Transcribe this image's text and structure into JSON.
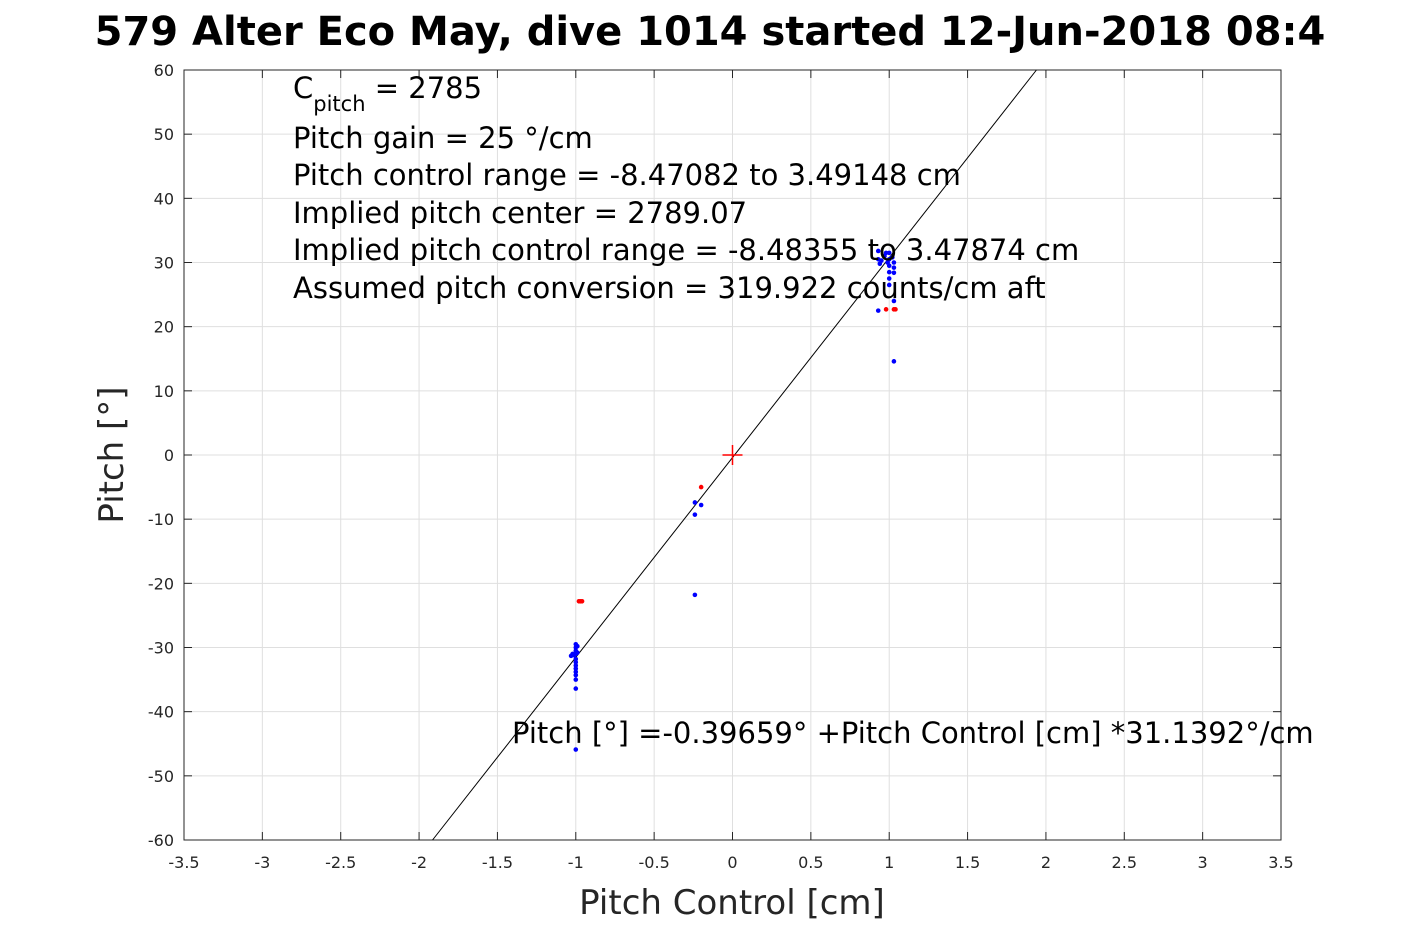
{
  "chart_data": {
    "type": "scatter",
    "title": "579 Alter Eco May, dive 1014 started 12-Jun-2018 08:4",
    "xlabel": "Pitch Control [cm]",
    "ylabel": "Pitch [°]",
    "xlim": [
      -3.5,
      3.5
    ],
    "ylim": [
      -60,
      60
    ],
    "xticks": [
      -3.5,
      -3,
      -2.5,
      -2,
      -1.5,
      -1,
      -0.5,
      0,
      0.5,
      1,
      1.5,
      2,
      2.5,
      3,
      3.5
    ],
    "yticks": [
      -60,
      -50,
      -40,
      -30,
      -20,
      -10,
      0,
      10,
      20,
      30,
      40,
      50,
      60
    ],
    "grid": true,
    "annotations": {
      "cpitch_symbol": "C",
      "cpitch_subscript": "pitch",
      "cpitch_value": " = 2785",
      "pitch_gain": "Pitch gain = 25 °/cm",
      "control_range": "Pitch control range = -8.47082 to 3.49148 cm",
      "implied_center": "Implied pitch center = 2789.07",
      "implied_range": "Implied pitch control range = -8.48355 to 3.47874 cm",
      "conversion": "Assumed pitch conversion = 319.922 counts/cm aft",
      "fit_equation": "Pitch [°] =-0.39659° +Pitch Control [cm] *31.1392°/cm"
    },
    "fit_line": {
      "intercept": -0.39659,
      "slope": 31.1392,
      "color": "#000000"
    },
    "center_marker": {
      "x": 0,
      "y": 0,
      "color": "#ff0000"
    },
    "series": [
      {
        "color": "#0000ff",
        "points": [
          [
            -1.0,
            -29.5
          ],
          [
            -1.0,
            -30.0
          ],
          [
            -1.0,
            -30.5
          ],
          [
            -1.0,
            -31.0
          ],
          [
            -1.01,
            -31.2
          ],
          [
            -1.02,
            -31.0
          ],
          [
            -1.03,
            -31.3
          ],
          [
            -1.0,
            -31.8
          ],
          [
            -1.0,
            -32.3
          ],
          [
            -1.0,
            -32.8
          ],
          [
            -1.0,
            -33.3
          ],
          [
            -1.0,
            -33.8
          ],
          [
            -1.0,
            -34.3
          ],
          [
            -1.0,
            -35.0
          ],
          [
            -1.0,
            -36.4
          ],
          [
            -1.0,
            -45.9
          ],
          [
            -0.99,
            -30.8
          ],
          [
            -0.99,
            -29.8
          ],
          [
            -0.24,
            -7.4
          ],
          [
            -0.24,
            -9.3
          ],
          [
            -0.2,
            -7.8
          ],
          [
            -0.24,
            -21.8
          ],
          [
            0.93,
            31.8
          ],
          [
            0.93,
            30.5
          ],
          [
            0.94,
            29.8
          ],
          [
            0.95,
            30.3
          ],
          [
            0.97,
            31.0
          ],
          [
            0.98,
            31.5
          ],
          [
            0.99,
            30.0
          ],
          [
            1.0,
            31.5
          ],
          [
            1.0,
            30.5
          ],
          [
            1.0,
            29.5
          ],
          [
            1.0,
            28.5
          ],
          [
            1.0,
            27.5
          ],
          [
            1.0,
            26.5
          ],
          [
            1.02,
            30.8
          ],
          [
            1.03,
            30.0
          ],
          [
            1.03,
            29.2
          ],
          [
            1.03,
            28.4
          ],
          [
            1.03,
            24.0
          ],
          [
            1.03,
            14.6
          ],
          [
            0.93,
            22.5
          ]
        ]
      },
      {
        "color": "#ff0000",
        "points": [
          [
            -0.98,
            -22.8
          ],
          [
            -0.97,
            -22.8
          ],
          [
            -0.96,
            -22.8
          ],
          [
            -0.2,
            -5.0
          ],
          [
            0.98,
            22.7
          ],
          [
            1.03,
            22.7
          ],
          [
            1.04,
            22.7
          ]
        ]
      }
    ]
  }
}
